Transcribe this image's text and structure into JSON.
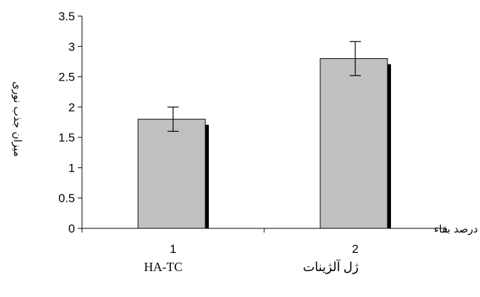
{
  "chart_data": {
    "type": "bar",
    "categories": [
      "1",
      "2"
    ],
    "category_names": [
      "HA-TC",
      "ژل آلژینات"
    ],
    "values": [
      1.8,
      2.8
    ],
    "error": [
      0.2,
      0.28
    ],
    "ylabel": "میزان جذب نوری",
    "xlabel": "درصد بقاء",
    "ylim": [
      0,
      3.5
    ],
    "yticks": [
      "0",
      "0.5",
      "1",
      "1.5",
      "2",
      "2.5",
      "3",
      "3.5"
    ],
    "grid": false,
    "legend": "none",
    "bar_color": "#c0c0c0",
    "shadow_color": "#000000"
  }
}
